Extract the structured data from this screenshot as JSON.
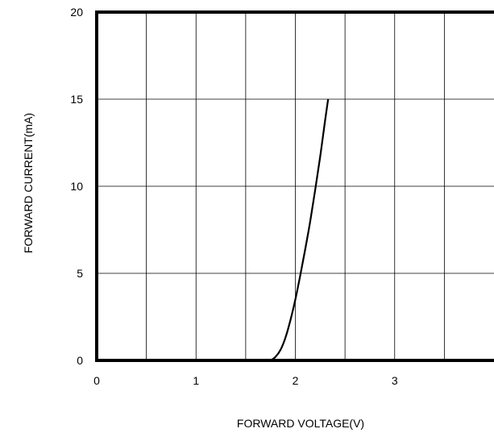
{
  "chart_data": {
    "type": "line",
    "xlabel": "FORWARD VOLTAGE(V)",
    "ylabel": "FORWARD CURRENT(mA)",
    "xlim": [
      0,
      4
    ],
    "ylim": [
      0,
      20
    ],
    "grid": true,
    "x_ticks": [
      "0",
      "1",
      "2",
      "3"
    ],
    "y_ticks": [
      "0",
      "5",
      "10",
      "15",
      "20"
    ],
    "series": [
      {
        "color": "#000000",
        "x": [
          1.75,
          1.8,
          1.85,
          1.9,
          1.95,
          2.0,
          2.05,
          2.1,
          2.15,
          2.2,
          2.25,
          2.3,
          2.33
        ],
        "y": [
          0.0,
          0.2,
          0.6,
          1.3,
          2.3,
          3.5,
          4.9,
          6.4,
          8.0,
          9.8,
          11.7,
          13.8,
          15.0
        ]
      }
    ]
  }
}
